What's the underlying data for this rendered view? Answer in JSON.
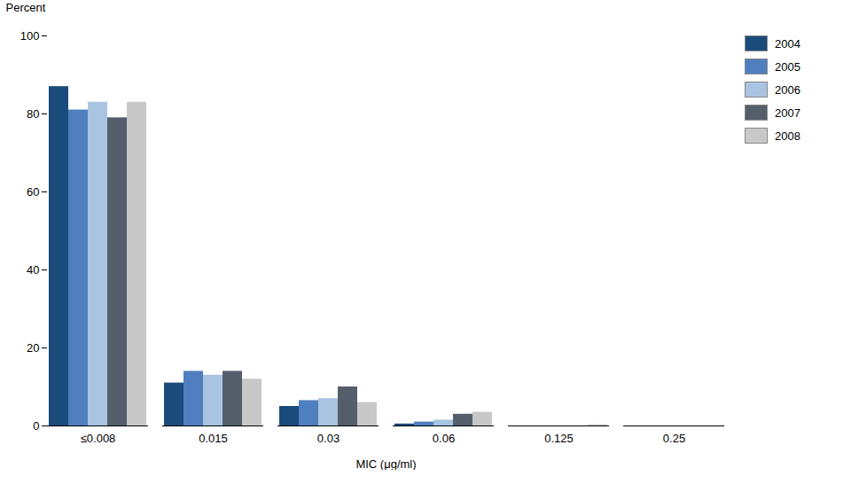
{
  "chart_data": {
    "type": "bar",
    "categories": [
      "≤0.008",
      "0.015",
      "0.03",
      "0.06",
      "0.125",
      "0.25"
    ],
    "series": [
      {
        "name": "2004",
        "color": "#1a4b7a",
        "values": [
          87.0,
          11.0,
          5.0,
          0.5,
          0.0,
          0.0
        ]
      },
      {
        "name": "2005",
        "color": "#4f7fbf",
        "values": [
          81.0,
          14.0,
          6.5,
          1.0,
          0.0,
          0.0
        ]
      },
      {
        "name": "2006",
        "color": "#a8c4e0",
        "values": [
          83.0,
          13.0,
          7.0,
          1.5,
          0.0,
          0.0
        ]
      },
      {
        "name": "2007",
        "color": "#555f6b",
        "values": [
          79.0,
          14.0,
          10.0,
          3.0,
          0.0,
          0.0
        ]
      },
      {
        "name": "2008",
        "color": "#c8c8c8",
        "values": [
          83.0,
          12.0,
          6.0,
          3.5,
          0.3,
          0.0
        ]
      }
    ],
    "xlabel": "MIC (μg/ml)",
    "ylabel": "Percent",
    "ylim": [
      0,
      100
    ],
    "yticks": [
      0,
      20,
      40,
      60,
      80,
      100
    ],
    "grid": false,
    "legend": "right"
  }
}
